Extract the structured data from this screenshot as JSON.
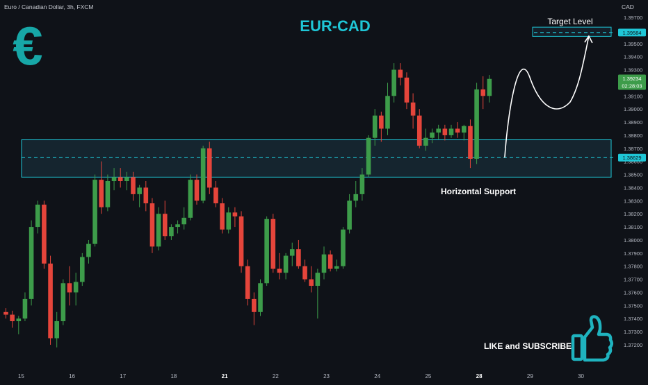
{
  "header": {
    "symbol_line": "Euro / Canadian Dollar, 3h, FXCM",
    "currency": "CAD"
  },
  "title": "EUR-CAD",
  "logo_glyph": "€",
  "annotations": {
    "target_label": "Target Level",
    "target_price_badge": "1.39584",
    "support_label": "Horizontal Support",
    "support_price_badge": "1.38629",
    "current_price_badge": "1.39234",
    "countdown_badge": "02:28:03",
    "cta": "LIKE and SUBSCRIBE"
  },
  "colors": {
    "background": "#0f1218",
    "up": "#3d9c4a",
    "down": "#e5453b",
    "accent": "#1fc6d6",
    "zone_fill": "#1b3544",
    "current_price": "#3d9c4a"
  },
  "icons": {
    "logo": "euro-icon",
    "cta": "thumbs-up-icon"
  },
  "chart_data": {
    "type": "candlestick",
    "ylim": [
      1.3715,
      1.3985
    ],
    "y_ticks": [
      "1.39700",
      "1.39600",
      "1.39500",
      "1.39400",
      "1.39300",
      "1.39200",
      "1.39100",
      "1.39000",
      "1.38900",
      "1.38800",
      "1.38700",
      "1.38600",
      "1.38500",
      "1.38400",
      "1.38300",
      "1.38200",
      "1.38100",
      "1.38000",
      "1.37900",
      "1.37800",
      "1.37700",
      "1.37600",
      "1.37500",
      "1.37400",
      "1.37300",
      "1.37200"
    ],
    "x_ticks": [
      {
        "label": "15",
        "pos": 0.2,
        "bold": false
      },
      {
        "label": "16",
        "pos": 8.2,
        "bold": false
      },
      {
        "label": "17",
        "pos": 16.2,
        "bold": false
      },
      {
        "label": "18",
        "pos": 24.2,
        "bold": false
      },
      {
        "label": "21",
        "pos": 32.2,
        "bold": true
      },
      {
        "label": "22",
        "pos": 40.2,
        "bold": false
      },
      {
        "label": "23",
        "pos": 48.2,
        "bold": false
      },
      {
        "label": "24",
        "pos": 56.2,
        "bold": false
      },
      {
        "label": "25",
        "pos": 64.2,
        "bold": false
      },
      {
        "label": "28",
        "pos": 72.2,
        "bold": true
      },
      {
        "label": "29",
        "pos": 80.2,
        "bold": false
      },
      {
        "label": "30",
        "pos": 88.2,
        "bold": false
      }
    ],
    "grid": false,
    "candles": [
      [
        1.3745,
        1.3748,
        1.374,
        1.3743
      ],
      [
        1.3743,
        1.3746,
        1.3733,
        1.3738
      ],
      [
        1.3738,
        1.3742,
        1.3728,
        1.374
      ],
      [
        1.374,
        1.376,
        1.3738,
        1.3755
      ],
      [
        1.3755,
        1.3815,
        1.375,
        1.381
      ],
      [
        1.381,
        1.383,
        1.3805,
        1.3827
      ],
      [
        1.3827,
        1.383,
        1.3778,
        1.3782
      ],
      [
        1.3782,
        1.3788,
        1.372,
        1.3725
      ],
      [
        1.3725,
        1.3745,
        1.3718,
        1.3738
      ],
      [
        1.3738,
        1.377,
        1.3735,
        1.3767
      ],
      [
        1.3767,
        1.378,
        1.375,
        1.376
      ],
      [
        1.376,
        1.3775,
        1.375,
        1.3768
      ],
      [
        1.3768,
        1.379,
        1.3765,
        1.3787
      ],
      [
        1.3787,
        1.38,
        1.3782,
        1.3797
      ],
      [
        1.3797,
        1.385,
        1.3795,
        1.3846
      ],
      [
        1.3846,
        1.386,
        1.382,
        1.3825
      ],
      [
        1.3825,
        1.385,
        1.3822,
        1.3845
      ],
      [
        1.3845,
        1.3855,
        1.3838,
        1.3848
      ],
      [
        1.3848,
        1.3855,
        1.384,
        1.3845
      ],
      [
        1.3845,
        1.3852,
        1.3838,
        1.3848
      ],
      [
        1.3848,
        1.3852,
        1.383,
        1.3835
      ],
      [
        1.3835,
        1.3842,
        1.3825,
        1.384
      ],
      [
        1.384,
        1.3845,
        1.3822,
        1.3828
      ],
      [
        1.3828,
        1.3832,
        1.379,
        1.3795
      ],
      [
        1.3795,
        1.3825,
        1.3792,
        1.382
      ],
      [
        1.382,
        1.383,
        1.38,
        1.3803
      ],
      [
        1.3803,
        1.3812,
        1.38,
        1.381
      ],
      [
        1.381,
        1.3815,
        1.3805,
        1.3812
      ],
      [
        1.3812,
        1.3825,
        1.3808,
        1.3817
      ],
      [
        1.3817,
        1.385,
        1.3815,
        1.3846
      ],
      [
        1.3846,
        1.385,
        1.3827,
        1.383
      ],
      [
        1.383,
        1.3872,
        1.3828,
        1.387
      ],
      [
        1.387,
        1.3875,
        1.3835,
        1.384
      ],
      [
        1.384,
        1.3845,
        1.3825,
        1.3828
      ],
      [
        1.3828,
        1.3832,
        1.3805,
        1.3808
      ],
      [
        1.3808,
        1.3825,
        1.3805,
        1.3821
      ],
      [
        1.3821,
        1.3825,
        1.381,
        1.3818
      ],
      [
        1.3818,
        1.3822,
        1.3775,
        1.378
      ],
      [
        1.378,
        1.3785,
        1.375,
        1.3755
      ],
      [
        1.3755,
        1.376,
        1.3735,
        1.3745
      ],
      [
        1.3745,
        1.377,
        1.3742,
        1.3767
      ],
      [
        1.3767,
        1.3818,
        1.3765,
        1.3816
      ],
      [
        1.3816,
        1.382,
        1.3775,
        1.3778
      ],
      [
        1.3778,
        1.379,
        1.377,
        1.3775
      ],
      [
        1.3775,
        1.379,
        1.377,
        1.3788
      ],
      [
        1.3788,
        1.3798,
        1.378,
        1.3793
      ],
      [
        1.3793,
        1.38,
        1.3778,
        1.378
      ],
      [
        1.378,
        1.3785,
        1.3768,
        1.377
      ],
      [
        1.377,
        1.378,
        1.376,
        1.3765
      ],
      [
        1.3765,
        1.3778,
        1.374,
        1.3775
      ],
      [
        1.3775,
        1.3795,
        1.377,
        1.3789
      ],
      [
        1.3789,
        1.3792,
        1.3776,
        1.3778
      ],
      [
        1.3778,
        1.3785,
        1.3776,
        1.378
      ],
      [
        1.378,
        1.381,
        1.3778,
        1.3808
      ],
      [
        1.3808,
        1.3835,
        1.3805,
        1.383
      ],
      [
        1.383,
        1.3845,
        1.3825,
        1.3835
      ],
      [
        1.3835,
        1.3855,
        1.383,
        1.385
      ],
      [
        1.385,
        1.388,
        1.3848,
        1.3878
      ],
      [
        1.3878,
        1.39,
        1.3872,
        1.3895
      ],
      [
        1.3895,
        1.3898,
        1.3875,
        1.3885
      ],
      [
        1.3885,
        1.392,
        1.388,
        1.391
      ],
      [
        1.391,
        1.3935,
        1.3905,
        1.393
      ],
      [
        1.393,
        1.3935,
        1.3918,
        1.3924
      ],
      [
        1.3924,
        1.3928,
        1.39,
        1.3905
      ],
      [
        1.3905,
        1.3912,
        1.3885,
        1.3895
      ],
      [
        1.3895,
        1.39,
        1.387,
        1.3872
      ],
      [
        1.3872,
        1.3885,
        1.3868,
        1.3878
      ],
      [
        1.3878,
        1.3885,
        1.3874,
        1.3882
      ],
      [
        1.3882,
        1.3888,
        1.3877,
        1.3885
      ],
      [
        1.3885,
        1.3888,
        1.3876,
        1.388
      ],
      [
        1.388,
        1.3888,
        1.3878,
        1.3885
      ],
      [
        1.3885,
        1.389,
        1.3878,
        1.3882
      ],
      [
        1.3882,
        1.3888,
        1.3876,
        1.3887
      ],
      [
        1.3887,
        1.3892,
        1.3855,
        1.3862
      ],
      [
        1.3862,
        1.392,
        1.3858,
        1.3915
      ],
      [
        1.3915,
        1.3925,
        1.39,
        1.391
      ],
      [
        1.391,
        1.3926,
        1.3905,
        1.3923
      ]
    ],
    "support_zone": [
      1.3848,
      1.38765
    ],
    "support_level": 1.38629,
    "target_zone": [
      1.39555,
      1.39625
    ],
    "target_level": 1.39584,
    "current_price": 1.39234
  }
}
